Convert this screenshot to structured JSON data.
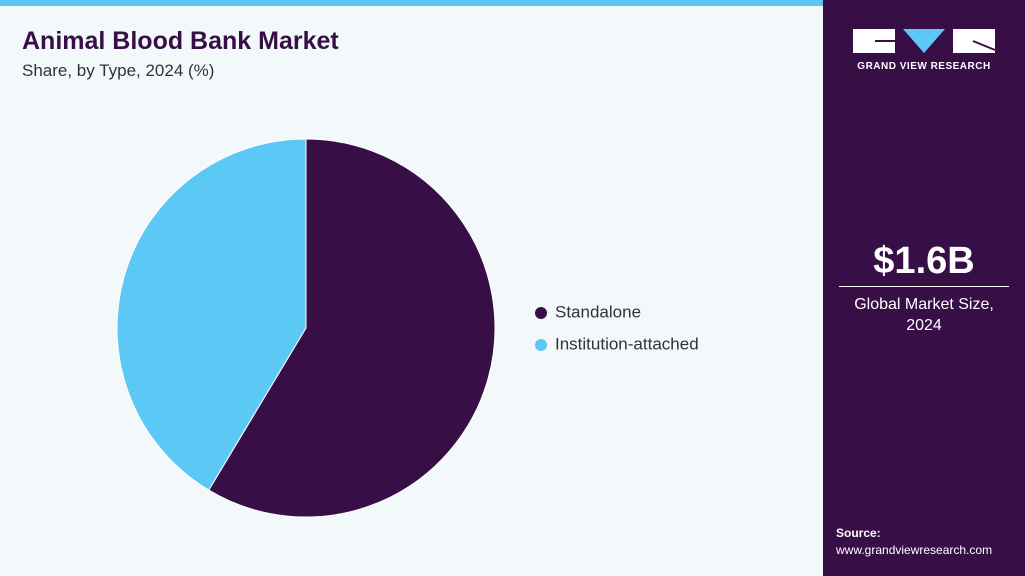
{
  "chart_data": {
    "type": "pie",
    "title": "Animal Blood Bank Market",
    "subtitle": "Share, by Type, 2024 (%)",
    "categories": [
      "Standalone",
      "Institution-attached"
    ],
    "values": [
      58.6,
      41.4
    ],
    "colors": [
      "#370f46",
      "#5bc8f5"
    ]
  },
  "sidebar": {
    "brand": "GRAND VIEW RESEARCH",
    "market_size": "$1.6B",
    "market_label": "Global Market Size, 2024",
    "source_label": "Source:",
    "source_url": "www.grandviewresearch.com"
  }
}
